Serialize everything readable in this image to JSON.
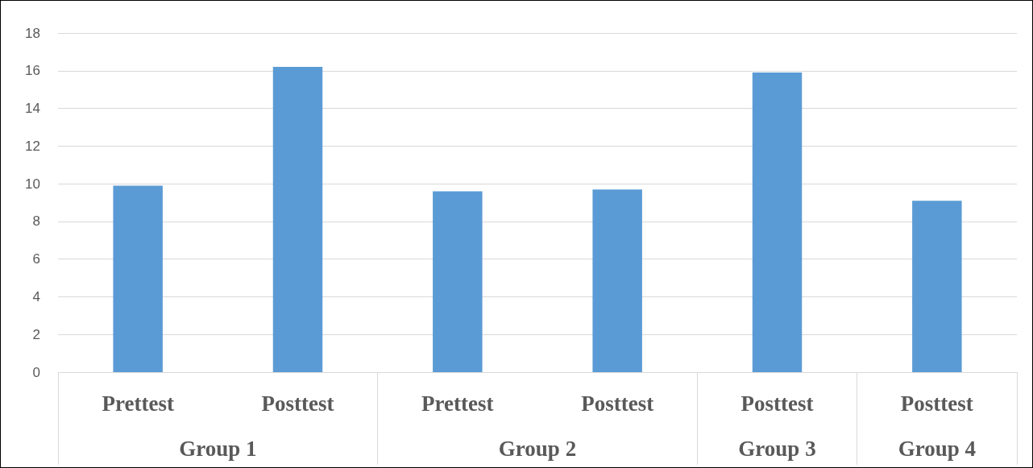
{
  "chart_data": {
    "type": "bar",
    "categories": [
      "Prettest",
      "Posttest",
      "Prettest",
      "Posttest",
      "Posttest",
      "Posttest"
    ],
    "values": [
      9.9,
      16.2,
      9.6,
      9.7,
      15.9,
      9.1
    ],
    "color": "#5b9bd5",
    "ylim": [
      0,
      18
    ],
    "yticks": [
      0,
      2,
      4,
      6,
      8,
      10,
      12,
      14,
      16,
      18
    ],
    "grid": "y",
    "annotations": [
      "Group 1",
      "Group 2",
      "Group 3",
      "Group 4"
    ]
  }
}
